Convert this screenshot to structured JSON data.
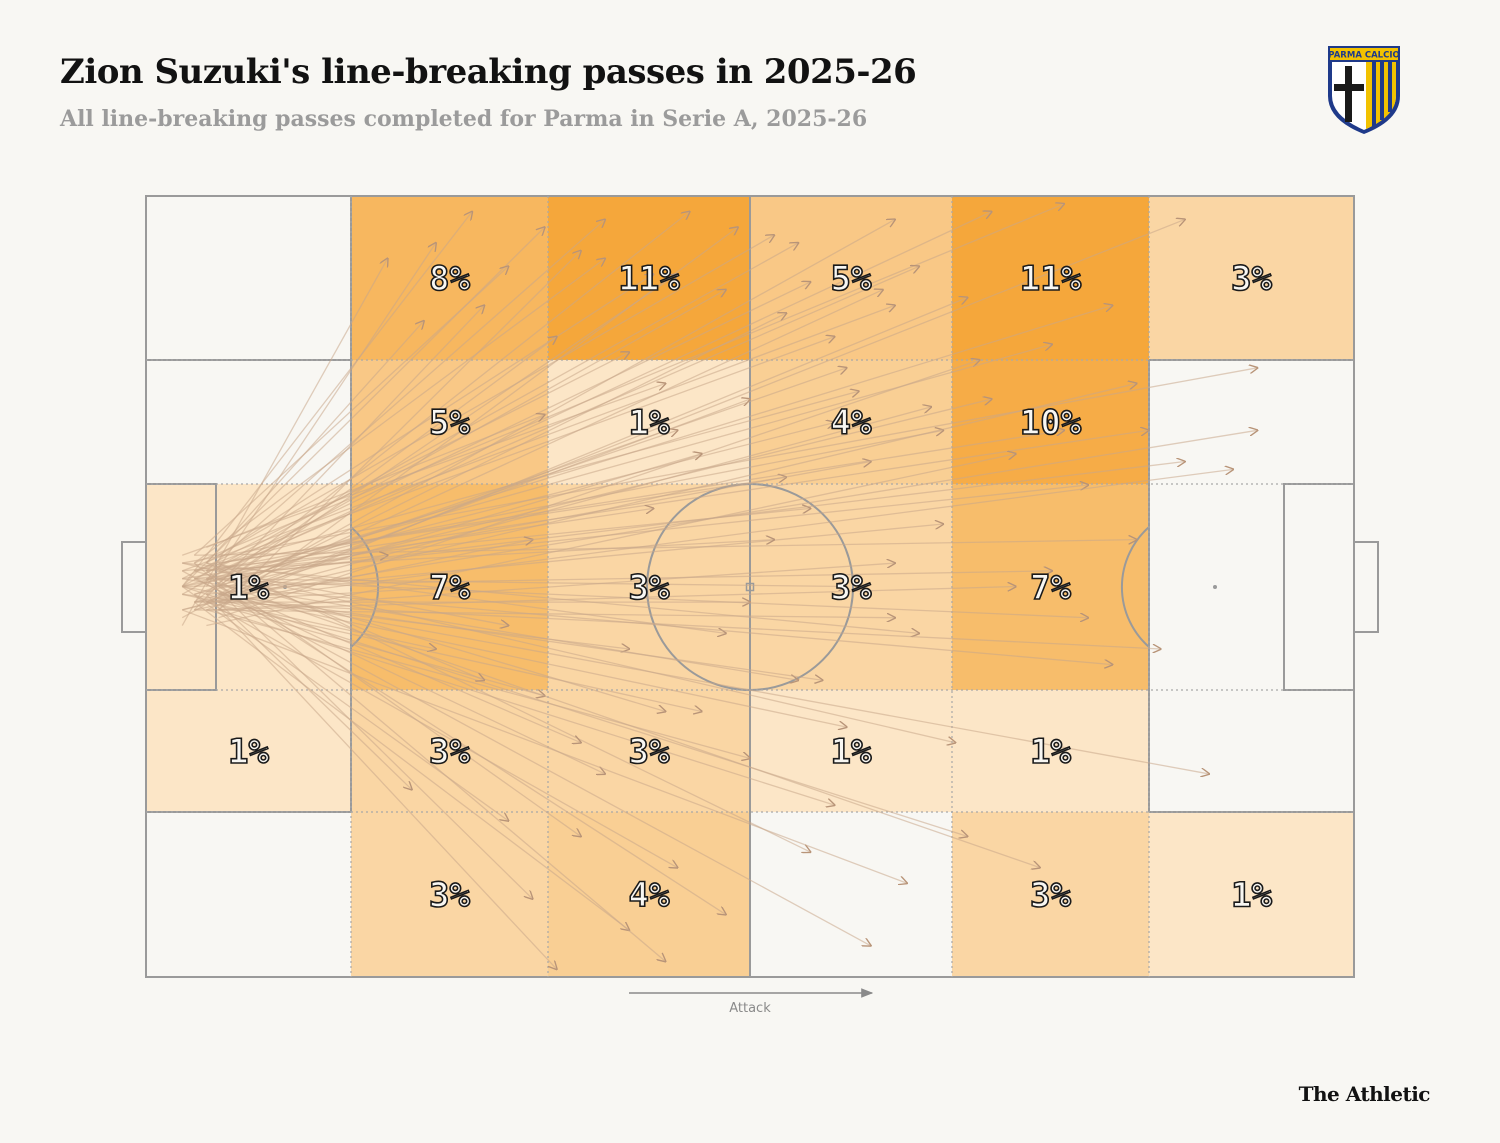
{
  "header": {
    "title": "Zion Suzuki's line-breaking passes in 2025-26",
    "subtitle": "All line-breaking passes completed for Parma in Serie A, 2025-26"
  },
  "logo": {
    "text": "PARMA CALCIO",
    "colors": {
      "blue": "#1f3a8a",
      "yellow": "#f2c200",
      "black": "#1a1a1a"
    }
  },
  "brand": "The Athletic",
  "attack_label": "Attack",
  "colors": {
    "background": "#f8f7f3",
    "heat_max": "#f5a73b",
    "heat_min": "#fdf2e3",
    "arrow": "#c8a88a"
  },
  "chart_data": {
    "type": "heatmap",
    "title": "Zion Suzuki's line-breaking passes in 2025-26",
    "subtitle": "All line-breaking passes completed for Parma in Serie A, 2025-26",
    "direction": "Attack",
    "columns": 6,
    "rows": 5,
    "zones": [
      {
        "row": 0,
        "col": 1,
        "value": 8,
        "label": "8%"
      },
      {
        "row": 0,
        "col": 2,
        "value": 11,
        "label": "11%"
      },
      {
        "row": 0,
        "col": 3,
        "value": 5,
        "label": "5%"
      },
      {
        "row": 0,
        "col": 4,
        "value": 11,
        "label": "11%"
      },
      {
        "row": 0,
        "col": 5,
        "value": 3,
        "label": "3%"
      },
      {
        "row": 1,
        "col": 1,
        "value": 5,
        "label": "5%"
      },
      {
        "row": 1,
        "col": 2,
        "value": 1,
        "label": "1%"
      },
      {
        "row": 1,
        "col": 3,
        "value": 4,
        "label": "4%"
      },
      {
        "row": 1,
        "col": 4,
        "value": 10,
        "label": "10%"
      },
      {
        "row": 2,
        "col": 0,
        "value": 1,
        "label": "1%"
      },
      {
        "row": 2,
        "col": 1,
        "value": 7,
        "label": "7%"
      },
      {
        "row": 2,
        "col": 2,
        "value": 3,
        "label": "3%"
      },
      {
        "row": 2,
        "col": 3,
        "value": 3,
        "label": "3%"
      },
      {
        "row": 2,
        "col": 4,
        "value": 7,
        "label": "7%"
      },
      {
        "row": 3,
        "col": 0,
        "value": 1,
        "label": "1%"
      },
      {
        "row": 3,
        "col": 1,
        "value": 3,
        "label": "3%"
      },
      {
        "row": 3,
        "col": 2,
        "value": 3,
        "label": "3%"
      },
      {
        "row": 3,
        "col": 3,
        "value": 1,
        "label": "1%"
      },
      {
        "row": 3,
        "col": 4,
        "value": 1,
        "label": "1%"
      },
      {
        "row": 4,
        "col": 1,
        "value": 3,
        "label": "3%"
      },
      {
        "row": 4,
        "col": 2,
        "value": 4,
        "label": "4%"
      },
      {
        "row": 4,
        "col": 4,
        "value": 3,
        "label": "3%"
      },
      {
        "row": 4,
        "col": 5,
        "value": 1,
        "label": "1%"
      }
    ],
    "passes": [
      [
        3,
        50,
        27,
        2
      ],
      [
        3,
        50,
        33,
        4
      ],
      [
        5,
        48,
        38,
        3
      ],
      [
        4,
        52,
        45,
        2
      ],
      [
        6,
        46,
        52,
        5
      ],
      [
        3,
        54,
        62,
        3
      ],
      [
        5,
        49,
        70,
        2
      ],
      [
        4,
        47,
        76,
        1
      ],
      [
        6,
        52,
        86,
        3
      ],
      [
        3,
        55,
        20,
        8
      ],
      [
        5,
        50,
        24,
        6
      ],
      [
        4,
        46,
        30,
        9
      ],
      [
        6,
        53,
        36,
        7
      ],
      [
        5,
        47,
        42,
        10
      ],
      [
        3,
        51,
        48,
        12
      ],
      [
        4,
        49,
        55,
        11
      ],
      [
        6,
        48,
        64,
        9
      ],
      [
        5,
        53,
        68,
        13
      ],
      [
        4,
        50,
        80,
        14
      ],
      [
        3,
        47,
        92,
        22
      ],
      [
        5,
        52,
        61,
        12
      ],
      [
        4,
        48,
        57,
        18
      ],
      [
        6,
        51,
        53,
        15
      ],
      [
        3,
        49,
        40,
        20
      ],
      [
        5,
        47,
        23,
        16
      ],
      [
        4,
        53,
        28,
        14
      ],
      [
        6,
        50,
        34,
        18
      ],
      [
        3,
        46,
        43,
        24
      ],
      [
        5,
        52,
        50,
        26
      ],
      [
        4,
        48,
        59,
        25
      ],
      [
        6,
        54,
        69,
        21
      ],
      [
        3,
        50,
        75,
        19
      ],
      [
        5,
        45,
        33,
        28
      ],
      [
        4,
        51,
        44,
        30
      ],
      [
        6,
        49,
        57,
        29
      ],
      [
        3,
        53,
        65,
        27
      ],
      [
        5,
        48,
        83,
        30
      ],
      [
        4,
        52,
        46,
        33
      ],
      [
        6,
        47,
        53,
        36
      ],
      [
        3,
        50,
        60,
        34
      ],
      [
        5,
        55,
        72,
        33
      ],
      [
        4,
        49,
        78,
        37
      ],
      [
        6,
        52,
        90,
        35
      ],
      [
        3,
        48,
        55,
        40
      ],
      [
        5,
        51,
        66,
        42
      ],
      [
        4,
        46,
        82,
        44
      ],
      [
        6,
        53,
        62,
        47
      ],
      [
        3,
        50,
        75,
        48
      ],
      [
        5,
        49,
        58,
        50
      ],
      [
        4,
        52,
        50,
        52
      ],
      [
        6,
        48,
        30,
        55
      ],
      [
        3,
        51,
        40,
        58
      ],
      [
        5,
        47,
        48,
        56
      ],
      [
        4,
        53,
        62,
        54
      ],
      [
        6,
        50,
        80,
        60
      ],
      [
        3,
        49,
        54,
        62
      ],
      [
        5,
        52,
        33,
        64
      ],
      [
        4,
        48,
        43,
        66
      ],
      [
        6,
        51,
        58,
        68
      ],
      [
        3,
        47,
        67,
        70
      ],
      [
        5,
        53,
        50,
        72
      ],
      [
        4,
        49,
        38,
        74
      ],
      [
        6,
        52,
        22,
        76
      ],
      [
        3,
        50,
        30,
        80
      ],
      [
        5,
        48,
        36,
        82
      ],
      [
        4,
        51,
        44,
        86
      ],
      [
        6,
        47,
        55,
        84
      ],
      [
        3,
        53,
        63,
        88
      ],
      [
        5,
        49,
        32,
        90
      ],
      [
        4,
        52,
        40,
        94
      ],
      [
        6,
        50,
        48,
        92
      ],
      [
        3,
        48,
        60,
        96
      ],
      [
        5,
        51,
        34,
        99
      ],
      [
        4,
        47,
        43,
        98
      ],
      [
        6,
        53,
        57,
        78
      ],
      [
        3,
        50,
        68,
        82
      ],
      [
        5,
        49,
        74,
        86
      ],
      [
        4,
        52,
        26,
        50
      ],
      [
        6,
        48,
        20,
        46
      ],
      [
        3,
        51,
        24,
        58
      ],
      [
        5,
        47,
        28,
        62
      ],
      [
        4,
        53,
        32,
        44
      ],
      [
        6,
        50,
        36,
        70
      ],
      [
        3,
        49,
        42,
        40
      ],
      [
        5,
        52,
        46,
        66
      ],
      [
        4,
        48,
        52,
        44
      ],
      [
        6,
        51,
        56,
        62
      ],
      [
        3,
        47,
        64,
        56
      ],
      [
        5,
        53,
        72,
        50
      ],
      [
        4,
        49,
        78,
        54
      ],
      [
        6,
        52,
        84,
        58
      ],
      [
        3,
        50,
        88,
        74
      ],
      [
        5,
        48,
        66,
        30
      ],
      [
        4,
        51,
        70,
        26
      ],
      [
        6,
        47,
        76,
        30
      ],
      [
        3,
        53,
        82,
        24
      ],
      [
        5,
        49,
        86,
        34
      ],
      [
        4,
        52,
        92,
        30
      ],
      [
        6,
        50,
        58,
        22
      ],
      [
        3,
        48,
        62,
        14
      ],
      [
        5,
        51,
        44,
        10
      ],
      [
        4,
        47,
        38,
        8
      ],
      [
        6,
        53,
        49,
        4
      ],
      [
        3,
        50,
        54,
        6
      ]
    ]
  }
}
